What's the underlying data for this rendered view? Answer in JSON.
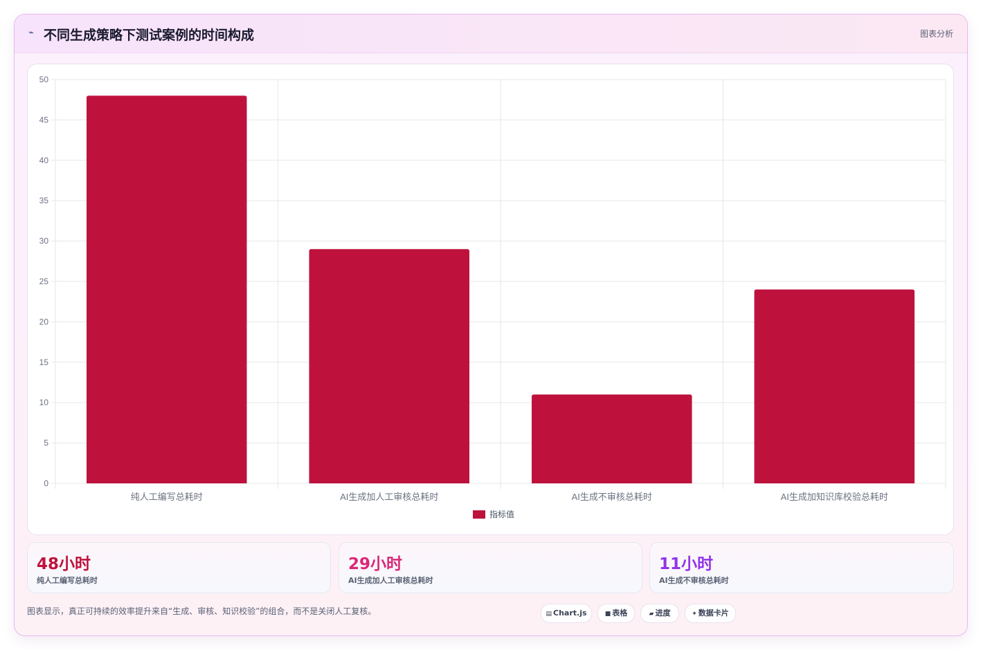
{
  "header": {
    "icon": "sparkle-icon",
    "title": "不同生成策略下测试案例的时间构成",
    "tag": "图表分析"
  },
  "chart_data": {
    "type": "bar",
    "categories": [
      "纯人工编写总耗时",
      "AI生成加人工审核总耗时",
      "AI生成不审核总耗时",
      "AI生成加知识库校验总耗时"
    ],
    "series": [
      {
        "name": "指标值",
        "values": [
          48,
          29,
          11,
          24
        ],
        "color": "#be123c"
      }
    ],
    "ylim": [
      0,
      50
    ],
    "yticks": [
      0,
      5,
      10,
      15,
      20,
      25,
      30,
      35,
      40,
      45,
      50
    ],
    "grid": true,
    "legend": "bottom"
  },
  "stats": [
    {
      "value": "48小时",
      "label": "纯人工编写总耗时",
      "color": "#be123c"
    },
    {
      "value": "29小时",
      "label": "AI生成加人工审核总耗时",
      "color": "#db2777"
    },
    {
      "value": "11小时",
      "label": "AI生成不审核总耗时",
      "color": "#9333ea"
    }
  ],
  "footer": {
    "text": "图表显示，真正可持续的效率提升来自“生成、审核、知识校验”的组合，而不是关闭人工复核。",
    "chips": [
      {
        "icon": "▤",
        "label": "Chart.js"
      },
      {
        "icon": "■",
        "label": "表格"
      },
      {
        "icon": "▰",
        "label": "进度"
      },
      {
        "icon": "✦",
        "label": "数据卡片"
      }
    ]
  }
}
